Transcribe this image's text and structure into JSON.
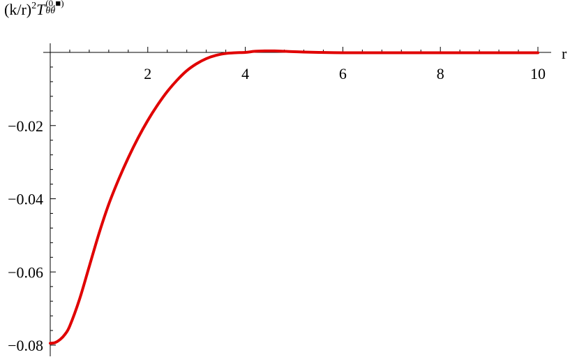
{
  "chart_data": {
    "type": "line",
    "title": "",
    "xlabel": "r",
    "ylabel": {
      "prefix": "(k/r)",
      "power": "2",
      "symbol": "T",
      "superscript": "(0,■)",
      "subscript": "θθ"
    },
    "xlim": [
      0,
      10
    ],
    "ylim": [
      -0.08,
      0
    ],
    "x_ticks": [
      {
        "value": 2,
        "label": "2"
      },
      {
        "value": 4,
        "label": "4"
      },
      {
        "value": 6,
        "label": "6"
      },
      {
        "value": 8,
        "label": "8"
      },
      {
        "value": 10,
        "label": "10"
      }
    ],
    "y_ticks": [
      {
        "value": -0.02,
        "label": "−0.02"
      },
      {
        "value": -0.04,
        "label": "−0.04"
      },
      {
        "value": -0.06,
        "label": "−0.06"
      },
      {
        "value": -0.08,
        "label": "−0.08"
      }
    ],
    "grid": false,
    "series": [
      {
        "color": "#e00000",
        "x": [
          0.0,
          0.1,
          0.2,
          0.3,
          0.4,
          0.6,
          0.8,
          1.0,
          1.2,
          1.4,
          1.6,
          1.8,
          2.0,
          2.2,
          2.4,
          2.6,
          2.8,
          3.0,
          3.2,
          3.4,
          3.6,
          3.8,
          4.0,
          4.2,
          4.4,
          4.6,
          4.8,
          5.0,
          5.2,
          5.5,
          6.0,
          6.5,
          7.0,
          8.0,
          9.0,
          10.0
        ],
        "y": [
          -0.0795,
          -0.0793,
          -0.0785,
          -0.0771,
          -0.0748,
          -0.0675,
          -0.0585,
          -0.0495,
          -0.0415,
          -0.0348,
          -0.0288,
          -0.0234,
          -0.0186,
          -0.0144,
          -0.0107,
          -0.0076,
          -0.005,
          -0.0031,
          -0.0017,
          -0.0008,
          -0.0003,
          -0.0001,
          0.0,
          0.0003,
          0.0004,
          0.0004,
          0.0003,
          0.0002,
          0.0001,
          0.0,
          -0.0001,
          -0.0001,
          -0.0001,
          -0.0001,
          -0.0001,
          -0.0001
        ]
      }
    ]
  }
}
